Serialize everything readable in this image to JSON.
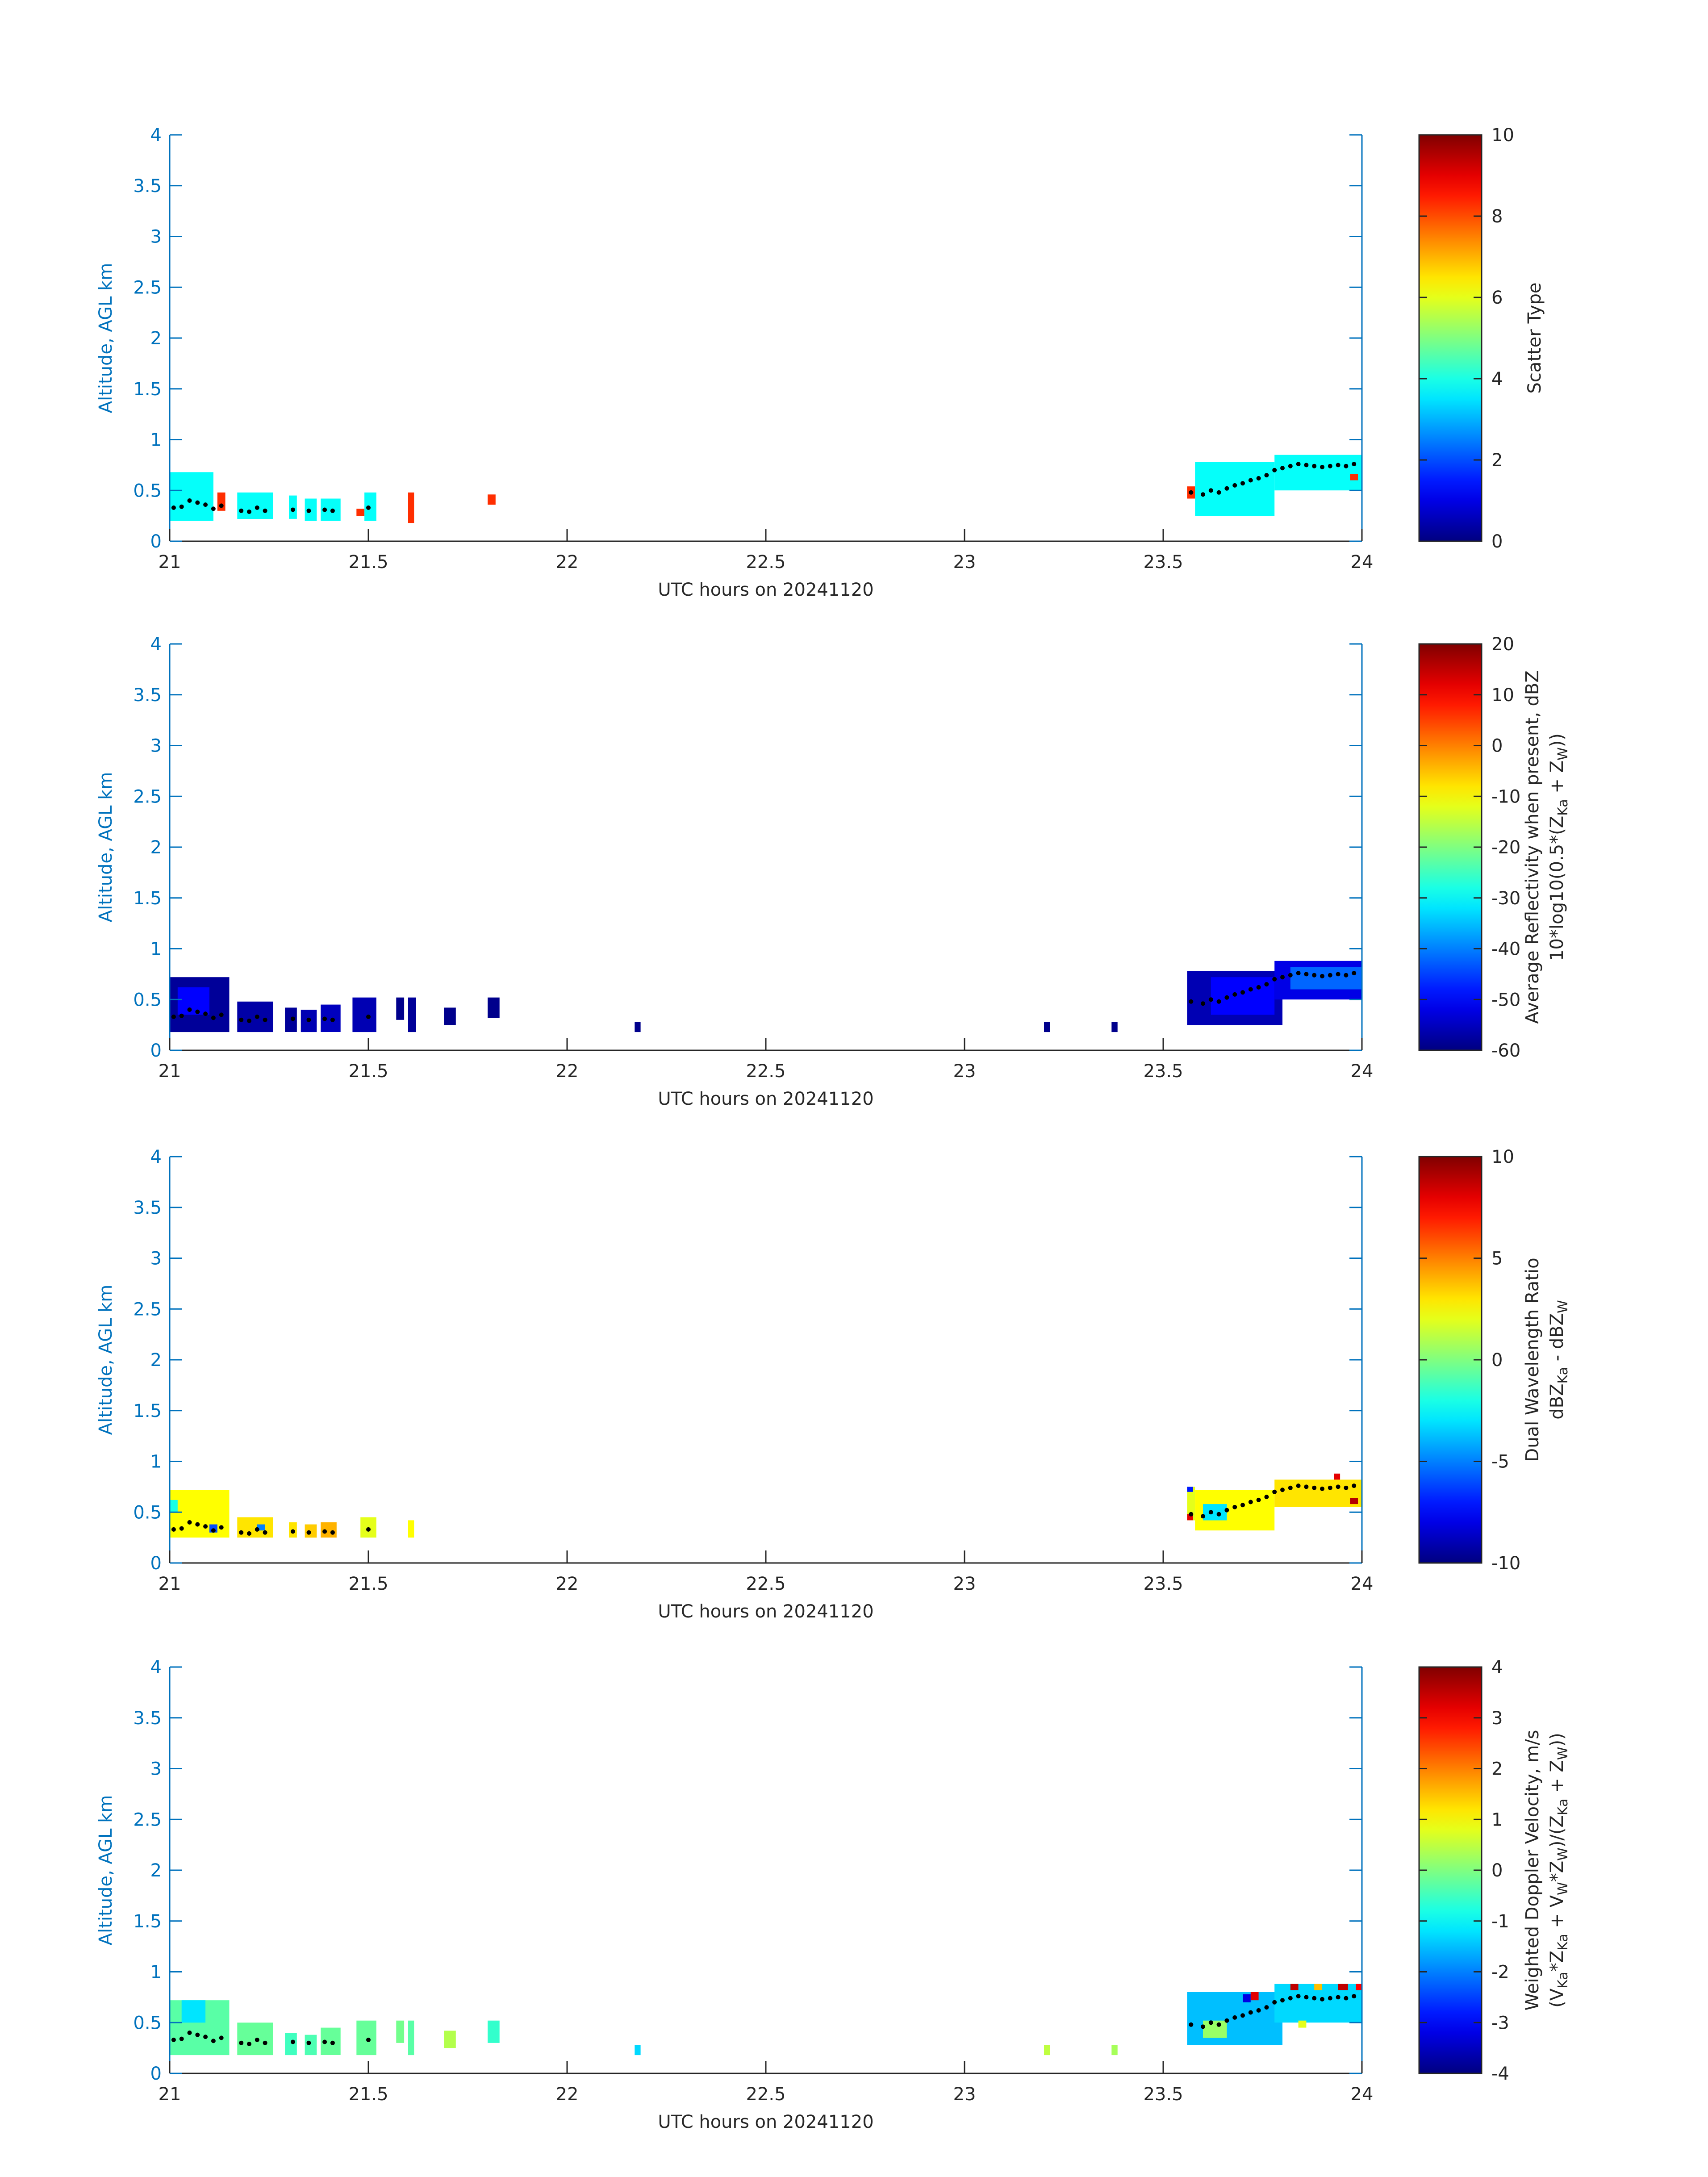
{
  "figure": {
    "colors": {
      "axis": "#0072BD",
      "text": "#262626",
      "cbar_border": "#262626",
      "centroid": "#000000"
    }
  },
  "chart_data": [
    {
      "type": "heatmap",
      "xlabel": "UTC hours on 20241120",
      "ylabel": "Altitude, AGL km",
      "xlim": [
        21,
        24
      ],
      "ylim": [
        0,
        4
      ],
      "xticks": [
        "21",
        "21.5",
        "22",
        "22.5",
        "23",
        "23.5",
        "24"
      ],
      "yticks": [
        "0",
        "0.5",
        "1",
        "1.5",
        "2",
        "2.5",
        "3",
        "3.5",
        "4"
      ],
      "colorbar": {
        "label_lines": [
          "Scatter Type"
        ],
        "range": [
          0,
          10
        ],
        "ticks": [
          "0",
          "2",
          "4",
          "6",
          "8",
          "10"
        ],
        "colormap": "jet"
      },
      "segments": [
        {
          "x0": 21.0,
          "x1": 21.11,
          "y0": 0.2,
          "y1": 0.68,
          "value": 3.8
        },
        {
          "x0": 21.12,
          "x1": 21.14,
          "y0": 0.3,
          "y1": 0.48,
          "value": 8.3
        },
        {
          "x0": 21.17,
          "x1": 21.26,
          "y0": 0.22,
          "y1": 0.48,
          "value": 3.8
        },
        {
          "x0": 21.3,
          "x1": 21.32,
          "y0": 0.22,
          "y1": 0.45,
          "value": 3.8
        },
        {
          "x0": 21.34,
          "x1": 21.37,
          "y0": 0.2,
          "y1": 0.42,
          "value": 3.8
        },
        {
          "x0": 21.38,
          "x1": 21.43,
          "y0": 0.2,
          "y1": 0.42,
          "value": 3.8
        },
        {
          "x0": 21.47,
          "x1": 21.49,
          "y0": 0.25,
          "y1": 0.32,
          "value": 8.3
        },
        {
          "x0": 21.49,
          "x1": 21.52,
          "y0": 0.2,
          "y1": 0.48,
          "value": 3.8
        },
        {
          "x0": 21.6,
          "x1": 21.615,
          "y0": 0.18,
          "y1": 0.48,
          "value": 8.3
        },
        {
          "x0": 21.8,
          "x1": 21.82,
          "y0": 0.36,
          "y1": 0.46,
          "value": 8.3
        },
        {
          "x0": 23.56,
          "x1": 23.58,
          "y0": 0.42,
          "y1": 0.54,
          "value": 8.3
        },
        {
          "x0": 23.58,
          "x1": 23.78,
          "y0": 0.25,
          "y1": 0.78,
          "value": 3.8
        },
        {
          "x0": 23.78,
          "x1": 24.0,
          "y0": 0.5,
          "y1": 0.85,
          "value": 3.8
        },
        {
          "x0": 23.97,
          "x1": 23.99,
          "y0": 0.6,
          "y1": 0.66,
          "value": 8.3
        }
      ]
    },
    {
      "type": "heatmap",
      "xlabel": "UTC hours on 20241120",
      "ylabel": "Altitude, AGL km",
      "xlim": [
        21,
        24
      ],
      "ylim": [
        0,
        4
      ],
      "xticks": [
        "21",
        "21.5",
        "22",
        "22.5",
        "23",
        "23.5",
        "24"
      ],
      "yticks": [
        "0",
        "0.5",
        "1",
        "1.5",
        "2",
        "2.5",
        "3",
        "3.5",
        "4"
      ],
      "colorbar": {
        "label_lines": [
          "Average Reflectivity when present, dBZ",
          "10*log10(0.5*(Z",
          "Ka",
          " + Z",
          "W",
          "))"
        ],
        "range": [
          -60,
          20
        ],
        "ticks": [
          "-60",
          "-50",
          "-40",
          "-30",
          "-20",
          "-10",
          "0",
          "10",
          "20"
        ],
        "colormap": "jet"
      },
      "segments": [
        {
          "x0": 21.0,
          "x1": 21.15,
          "y0": 0.18,
          "y1": 0.72,
          "value": -58
        },
        {
          "x0": 21.02,
          "x1": 21.1,
          "y0": 0.35,
          "y1": 0.62,
          "value": -50
        },
        {
          "x0": 21.17,
          "x1": 21.26,
          "y0": 0.18,
          "y1": 0.48,
          "value": -57
        },
        {
          "x0": 21.29,
          "x1": 21.32,
          "y0": 0.18,
          "y1": 0.42,
          "value": -58
        },
        {
          "x0": 21.33,
          "x1": 21.37,
          "y0": 0.18,
          "y1": 0.4,
          "value": -56
        },
        {
          "x0": 21.38,
          "x1": 21.43,
          "y0": 0.18,
          "y1": 0.45,
          "value": -55
        },
        {
          "x0": 21.46,
          "x1": 21.52,
          "y0": 0.18,
          "y1": 0.52,
          "value": -56
        },
        {
          "x0": 21.57,
          "x1": 21.59,
          "y0": 0.3,
          "y1": 0.52,
          "value": -59
        },
        {
          "x0": 21.6,
          "x1": 21.62,
          "y0": 0.18,
          "y1": 0.52,
          "value": -58
        },
        {
          "x0": 21.69,
          "x1": 21.72,
          "y0": 0.25,
          "y1": 0.42,
          "value": -59
        },
        {
          "x0": 21.8,
          "x1": 21.83,
          "y0": 0.32,
          "y1": 0.52,
          "value": -59
        },
        {
          "x0": 22.17,
          "x1": 22.185,
          "y0": 0.18,
          "y1": 0.28,
          "value": -59
        },
        {
          "x0": 23.2,
          "x1": 23.215,
          "y0": 0.18,
          "y1": 0.28,
          "value": -59
        },
        {
          "x0": 23.37,
          "x1": 23.385,
          "y0": 0.18,
          "y1": 0.28,
          "value": -59
        },
        {
          "x0": 23.56,
          "x1": 23.8,
          "y0": 0.25,
          "y1": 0.78,
          "value": -56
        },
        {
          "x0": 23.62,
          "x1": 23.78,
          "y0": 0.35,
          "y1": 0.72,
          "value": -50
        },
        {
          "x0": 23.78,
          "x1": 24.0,
          "y0": 0.5,
          "y1": 0.88,
          "value": -52
        },
        {
          "x0": 23.82,
          "x1": 24.0,
          "y0": 0.6,
          "y1": 0.82,
          "value": -42
        }
      ]
    },
    {
      "type": "heatmap",
      "xlabel": "UTC hours on 20241120",
      "ylabel": "Altitude, AGL km",
      "xlim": [
        21,
        24
      ],
      "ylim": [
        0,
        4
      ],
      "xticks": [
        "21",
        "21.5",
        "22",
        "22.5",
        "23",
        "23.5",
        "24"
      ],
      "yticks": [
        "0",
        "0.5",
        "1",
        "1.5",
        "2",
        "2.5",
        "3",
        "3.5",
        "4"
      ],
      "colorbar": {
        "label_lines": [
          "Dual Wavelength Ratio",
          "dBZ",
          "Ka",
          " - dBZ",
          "W"
        ],
        "range": [
          -10,
          10
        ],
        "ticks": [
          "-10",
          "-5",
          "0",
          "5",
          "10"
        ],
        "colormap": "jet"
      },
      "segments": [
        {
          "x0": 21.0,
          "x1": 21.15,
          "y0": 0.25,
          "y1": 0.72,
          "value": 2.5
        },
        {
          "x0": 21.0,
          "x1": 21.02,
          "y0": 0.5,
          "y1": 0.62,
          "value": -2
        },
        {
          "x0": 21.1,
          "x1": 21.12,
          "y0": 0.3,
          "y1": 0.38,
          "value": -6
        },
        {
          "x0": 21.17,
          "x1": 21.26,
          "y0": 0.25,
          "y1": 0.45,
          "value": 3
        },
        {
          "x0": 21.22,
          "x1": 21.24,
          "y0": 0.32,
          "y1": 0.38,
          "value": -5
        },
        {
          "x0": 21.3,
          "x1": 21.32,
          "y0": 0.25,
          "y1": 0.4,
          "value": 3
        },
        {
          "x0": 21.34,
          "x1": 21.37,
          "y0": 0.25,
          "y1": 0.38,
          "value": 3.5
        },
        {
          "x0": 21.38,
          "x1": 21.42,
          "y0": 0.25,
          "y1": 0.4,
          "value": 4
        },
        {
          "x0": 21.48,
          "x1": 21.52,
          "y0": 0.25,
          "y1": 0.45,
          "value": 2
        },
        {
          "x0": 21.6,
          "x1": 21.615,
          "y0": 0.25,
          "y1": 0.42,
          "value": 2.5
        },
        {
          "x0": 23.56,
          "x1": 23.58,
          "y0": 0.42,
          "y1": 0.75,
          "value": 2
        },
        {
          "x0": 23.56,
          "x1": 23.575,
          "y0": 0.7,
          "y1": 0.75,
          "value": -7
        },
        {
          "x0": 23.56,
          "x1": 23.575,
          "y0": 0.42,
          "y1": 0.48,
          "value": 8
        },
        {
          "x0": 23.58,
          "x1": 23.78,
          "y0": 0.32,
          "y1": 0.72,
          "value": 2.5
        },
        {
          "x0": 23.6,
          "x1": 23.66,
          "y0": 0.42,
          "y1": 0.58,
          "value": -3
        },
        {
          "x0": 23.78,
          "x1": 24.0,
          "y0": 0.55,
          "y1": 0.82,
          "value": 3
        },
        {
          "x0": 23.93,
          "x1": 23.945,
          "y0": 0.82,
          "y1": 0.88,
          "value": 8
        },
        {
          "x0": 23.97,
          "x1": 23.99,
          "y0": 0.58,
          "y1": 0.64,
          "value": 9
        }
      ]
    },
    {
      "type": "heatmap",
      "xlabel": "UTC hours on 20241120",
      "ylabel": "Altitude, AGL km",
      "xlim": [
        21,
        24
      ],
      "ylim": [
        0,
        4
      ],
      "xticks": [
        "21",
        "21.5",
        "22",
        "22.5",
        "23",
        "23.5",
        "24"
      ],
      "yticks": [
        "0",
        "0.5",
        "1",
        "1.5",
        "2",
        "2.5",
        "3",
        "3.5",
        "4"
      ],
      "colorbar": {
        "label_lines": [
          "Weighted Doppler Velocity, m/s",
          "(V",
          "Ka",
          "*Z",
          "Ka",
          " + V",
          "W",
          "*Z",
          "W",
          ")/(Z",
          "Ka",
          " + Z",
          "W",
          "))"
        ],
        "range": [
          -4,
          4
        ],
        "ticks": [
          "-4",
          "-3",
          "-2",
          "-1",
          "0",
          "1",
          "2",
          "3",
          "4"
        ],
        "colormap": "jet"
      },
      "segments": [
        {
          "x0": 21.0,
          "x1": 21.15,
          "y0": 0.18,
          "y1": 0.72,
          "value": -0.3
        },
        {
          "x0": 21.03,
          "x1": 21.09,
          "y0": 0.5,
          "y1": 0.72,
          "value": -1.2
        },
        {
          "x0": 21.17,
          "x1": 21.26,
          "y0": 0.18,
          "y1": 0.5,
          "value": -0.2
        },
        {
          "x0": 21.29,
          "x1": 21.32,
          "y0": 0.18,
          "y1": 0.4,
          "value": -0.5
        },
        {
          "x0": 21.34,
          "x1": 21.37,
          "y0": 0.18,
          "y1": 0.38,
          "value": -0.4
        },
        {
          "x0": 21.38,
          "x1": 21.43,
          "y0": 0.18,
          "y1": 0.45,
          "value": -0.2
        },
        {
          "x0": 21.47,
          "x1": 21.52,
          "y0": 0.18,
          "y1": 0.52,
          "value": -0.2
        },
        {
          "x0": 21.57,
          "x1": 21.59,
          "y0": 0.3,
          "y1": 0.52,
          "value": -0.1
        },
        {
          "x0": 21.6,
          "x1": 21.615,
          "y0": 0.18,
          "y1": 0.52,
          "value": -0.3
        },
        {
          "x0": 21.69,
          "x1": 21.72,
          "y0": 0.25,
          "y1": 0.42,
          "value": 0.4
        },
        {
          "x0": 21.8,
          "x1": 21.83,
          "y0": 0.3,
          "y1": 0.52,
          "value": -0.6
        },
        {
          "x0": 22.17,
          "x1": 22.185,
          "y0": 0.18,
          "y1": 0.28,
          "value": -1.3
        },
        {
          "x0": 23.2,
          "x1": 23.215,
          "y0": 0.18,
          "y1": 0.28,
          "value": 0.5
        },
        {
          "x0": 23.37,
          "x1": 23.385,
          "y0": 0.18,
          "y1": 0.28,
          "value": 0.3
        },
        {
          "x0": 23.56,
          "x1": 23.8,
          "y0": 0.28,
          "y1": 0.8,
          "value": -1.5
        },
        {
          "x0": 23.6,
          "x1": 23.66,
          "y0": 0.35,
          "y1": 0.52,
          "value": 0.2
        },
        {
          "x0": 23.7,
          "x1": 23.72,
          "y0": 0.7,
          "y1": 0.78,
          "value": -3.2
        },
        {
          "x0": 23.72,
          "x1": 23.74,
          "y0": 0.72,
          "y1": 0.8,
          "value": 3.2
        },
        {
          "x0": 23.78,
          "x1": 24.0,
          "y0": 0.5,
          "y1": 0.88,
          "value": -1.3
        },
        {
          "x0": 23.82,
          "x1": 23.84,
          "y0": 0.82,
          "y1": 0.88,
          "value": 3.5
        },
        {
          "x0": 23.88,
          "x1": 23.9,
          "y0": 0.82,
          "y1": 0.88,
          "value": 1.5
        },
        {
          "x0": 23.94,
          "x1": 23.965,
          "y0": 0.82,
          "y1": 0.88,
          "value": 3.5
        },
        {
          "x0": 23.985,
          "x1": 24.0,
          "y0": 0.82,
          "y1": 0.88,
          "value": 3.0
        },
        {
          "x0": 23.84,
          "x1": 23.86,
          "y0": 0.45,
          "y1": 0.52,
          "value": 0.8
        }
      ]
    }
  ],
  "centroid_track": [
    {
      "x": 21.01,
      "y": 0.33
    },
    {
      "x": 21.03,
      "y": 0.34
    },
    {
      "x": 21.05,
      "y": 0.4
    },
    {
      "x": 21.07,
      "y": 0.38
    },
    {
      "x": 21.09,
      "y": 0.36
    },
    {
      "x": 21.11,
      "y": 0.32
    },
    {
      "x": 21.13,
      "y": 0.35
    },
    {
      "x": 21.18,
      "y": 0.3
    },
    {
      "x": 21.2,
      "y": 0.29
    },
    {
      "x": 21.22,
      "y": 0.33
    },
    {
      "x": 21.24,
      "y": 0.3
    },
    {
      "x": 21.31,
      "y": 0.31
    },
    {
      "x": 21.35,
      "y": 0.3
    },
    {
      "x": 21.39,
      "y": 0.31
    },
    {
      "x": 21.41,
      "y": 0.3
    },
    {
      "x": 21.5,
      "y": 0.33
    },
    {
      "x": 23.57,
      "y": 0.48
    },
    {
      "x": 23.6,
      "y": 0.46
    },
    {
      "x": 23.62,
      "y": 0.5
    },
    {
      "x": 23.64,
      "y": 0.48
    },
    {
      "x": 23.66,
      "y": 0.52
    },
    {
      "x": 23.68,
      "y": 0.55
    },
    {
      "x": 23.7,
      "y": 0.57
    },
    {
      "x": 23.72,
      "y": 0.6
    },
    {
      "x": 23.74,
      "y": 0.62
    },
    {
      "x": 23.76,
      "y": 0.65
    },
    {
      "x": 23.78,
      "y": 0.7
    },
    {
      "x": 23.8,
      "y": 0.72
    },
    {
      "x": 23.82,
      "y": 0.74
    },
    {
      "x": 23.84,
      "y": 0.76
    },
    {
      "x": 23.86,
      "y": 0.75
    },
    {
      "x": 23.88,
      "y": 0.74
    },
    {
      "x": 23.9,
      "y": 0.73
    },
    {
      "x": 23.92,
      "y": 0.74
    },
    {
      "x": 23.94,
      "y": 0.75
    },
    {
      "x": 23.96,
      "y": 0.74
    },
    {
      "x": 23.98,
      "y": 0.76
    }
  ]
}
